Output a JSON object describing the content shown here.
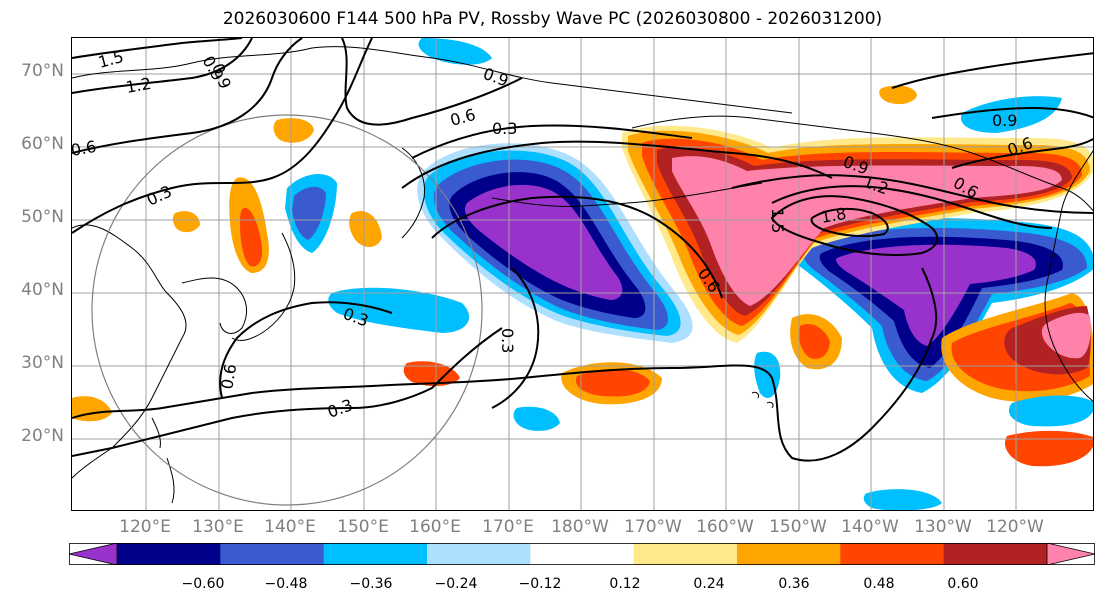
{
  "title": "2026030600 F144 500 hPa PV, Rossby Wave PC (2026030800 - 2026031200)",
  "map": {
    "lat_labels": [
      "70°N",
      "60°N",
      "50°N",
      "40°N",
      "30°N",
      "20°N"
    ],
    "lon_labels": [
      "120°E",
      "130°E",
      "140°E",
      "150°E",
      "160°E",
      "170°E",
      "180°W",
      "170°W",
      "160°W",
      "150°W",
      "140°W",
      "130°W",
      "120°W"
    ],
    "contour_labels": [
      "1.5",
      "1.2",
      "0.6",
      "0.3",
      "0.9",
      "0.9",
      "0.6",
      "0.3",
      "0.3",
      "0.6",
      "0.3",
      "0.6",
      "0.3",
      "0.9",
      "0.9",
      "1.2",
      "1.5",
      "1.8",
      "0.6",
      "0.6",
      "0.9"
    ]
  },
  "colorbar": {
    "colors": [
      "#9932CC",
      "#00008B",
      "#3A5BD0",
      "#00BFFF",
      "#ADDFFF",
      "#FFFFFF",
      "#FFE98A",
      "#FFA500",
      "#FF4500",
      "#B22222",
      "#FF82AB"
    ],
    "ticks": [
      "−0.60",
      "−0.48",
      "−0.36",
      "−0.24",
      "−0.12",
      "0.12",
      "0.24",
      "0.36",
      "0.48",
      "0.60"
    ]
  }
}
